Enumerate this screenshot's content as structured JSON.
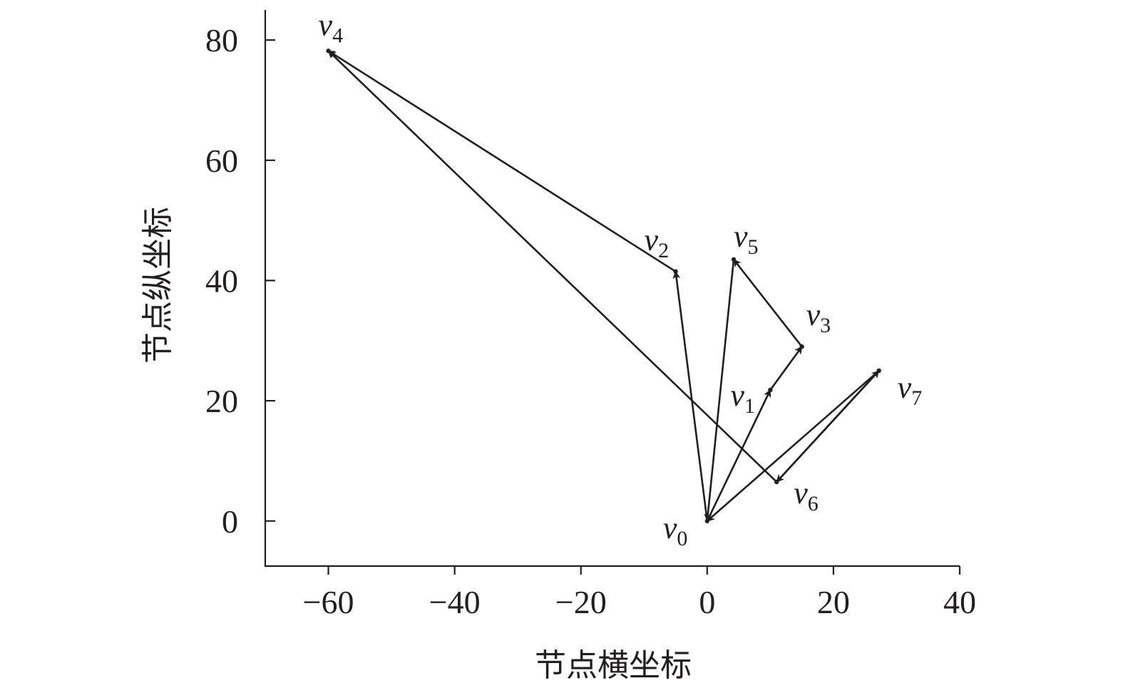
{
  "chart_data": {
    "type": "scatter",
    "title": "",
    "xlabel": "节点横坐标",
    "ylabel": "节点纵坐标",
    "xlim": [
      -70,
      40
    ],
    "ylim": [
      -7.5,
      85
    ],
    "xticks": [
      -60,
      -40,
      -20,
      0,
      20,
      40
    ],
    "yticks": [
      0,
      20,
      40,
      60,
      80
    ],
    "xtick_labels": [
      "−60",
      "−40",
      "−20",
      "0",
      "20",
      "40"
    ],
    "ytick_labels": [
      "0",
      "20",
      "40",
      "60",
      "80"
    ],
    "grid": false,
    "nodes": [
      {
        "id": "v0",
        "base": "v",
        "sub": "0",
        "x": 0,
        "y": 0
      },
      {
        "id": "v1",
        "base": "v",
        "sub": "1",
        "x": 10,
        "y": 21.8
      },
      {
        "id": "v2",
        "base": "v",
        "sub": "2",
        "x": -5,
        "y": 41.5
      },
      {
        "id": "v3",
        "base": "v",
        "sub": "3",
        "x": 15,
        "y": 29
      },
      {
        "id": "v4",
        "base": "v",
        "sub": "4",
        "x": -60,
        "y": 78.2
      },
      {
        "id": "v5",
        "base": "v",
        "sub": "5",
        "x": 4.2,
        "y": 43.5
      },
      {
        "id": "v6",
        "base": "v",
        "sub": "6",
        "x": 11,
        "y": 6.5
      },
      {
        "id": "v7",
        "base": "v",
        "sub": "7",
        "x": 27.2,
        "y": 25
      }
    ],
    "edges": [
      {
        "from": "v0",
        "to": "v2"
      },
      {
        "from": "v2",
        "to": "v4"
      },
      {
        "from": "v6",
        "to": "v4"
      },
      {
        "from": "v5",
        "to": "v0"
      },
      {
        "from": "v0",
        "to": "v1"
      },
      {
        "from": "v1",
        "to": "v3"
      },
      {
        "from": "v3",
        "to": "v5"
      },
      {
        "from": "v6",
        "to": "v7"
      },
      {
        "from": "v7",
        "to": "v6"
      },
      {
        "from": "v7",
        "to": "v0"
      }
    ]
  }
}
